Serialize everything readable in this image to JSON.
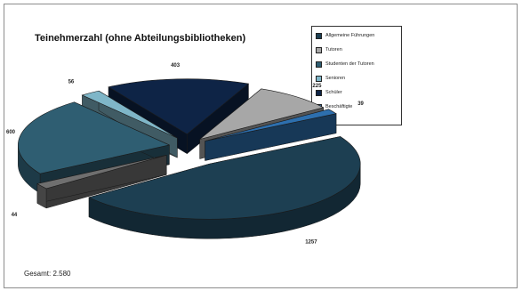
{
  "chart_data": {
    "type": "pie",
    "title": "Teinehmerzahl (ohne Abteilungsbibliotheken)",
    "style": "3d-exploded",
    "categories": [
      "Allgemeine Führungen",
      "Tutoren",
      "Studenten der Tutoren",
      "Senioren",
      "Schüler",
      "Beschäftigte"
    ],
    "values": [
      1257,
      225,
      600,
      56,
      403,
      39
    ],
    "value_labels": [
      "1257",
      "225",
      "600",
      "56",
      "403",
      "39"
    ],
    "colors": [
      "#1d3f52",
      "#a7a7a7",
      "#2f5e72",
      "#7fb6c8",
      "#0e2446",
      "#2d6fae"
    ],
    "extra_slice": {
      "value": 44,
      "label": "44",
      "color": "#6f6f6f"
    },
    "legend_position": "top-right"
  },
  "footer": {
    "total_text": "Gesamt: 2.580"
  }
}
